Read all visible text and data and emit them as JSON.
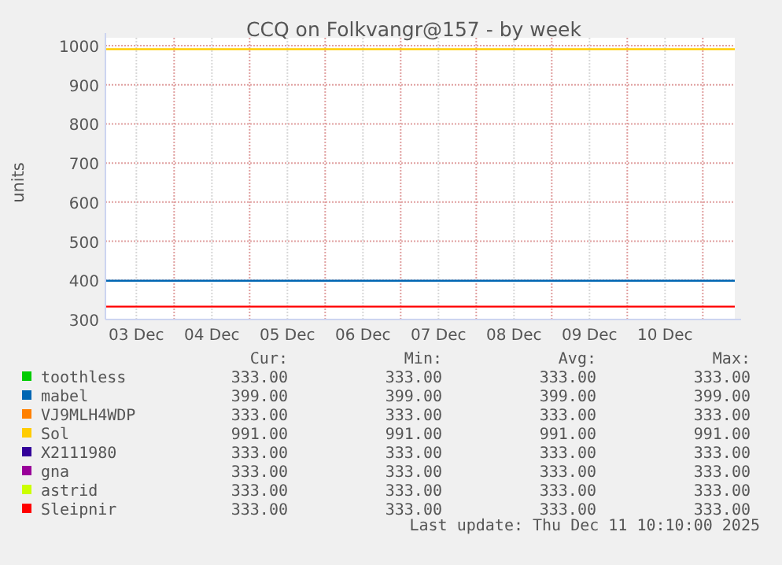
{
  "chart_data": {
    "type": "line",
    "title": "CCQ on Folkvangr@157 - by week",
    "ylabel": "units",
    "xlim": [
      "2025-12-03T02:10",
      "2025-12-11T10:10"
    ],
    "xticks": [
      {
        "value": "2025-12-03T12:00",
        "label": "03 Dec"
      },
      {
        "value": "2025-12-04T00:00",
        "label": null
      },
      {
        "value": "2025-12-04T12:00",
        "label": "04 Dec"
      },
      {
        "value": "2025-12-05T00:00",
        "label": null
      },
      {
        "value": "2025-12-05T12:00",
        "label": "05 Dec"
      },
      {
        "value": "2025-12-06T00:00",
        "label": null
      },
      {
        "value": "2025-12-06T12:00",
        "label": "06 Dec"
      },
      {
        "value": "2025-12-07T00:00",
        "label": null
      },
      {
        "value": "2025-12-07T12:00",
        "label": "07 Dec"
      },
      {
        "value": "2025-12-08T00:00",
        "label": null
      },
      {
        "value": "2025-12-08T12:00",
        "label": "08 Dec"
      },
      {
        "value": "2025-12-09T00:00",
        "label": null
      },
      {
        "value": "2025-12-09T12:00",
        "label": "09 Dec"
      },
      {
        "value": "2025-12-10T00:00",
        "label": null
      },
      {
        "value": "2025-12-10T12:00",
        "label": "10 Dec"
      },
      {
        "value": "2025-12-11T00:00",
        "label": null
      }
    ],
    "ylim": [
      300,
      1000
    ],
    "yticks": [
      300,
      400,
      500,
      600,
      700,
      800,
      900,
      1000
    ],
    "grid": true,
    "legend": "bottom",
    "line_style": "solid",
    "x": [
      "2025-12-03T02:10",
      "2025-12-11T10:10"
    ],
    "series": [
      {
        "name": "toothless",
        "color": "#00cc00",
        "values": [
          null,
          null
        ]
      },
      {
        "name": "mabel",
        "color": "#0066b3",
        "values": [
          399,
          399
        ]
      },
      {
        "name": "VJ9MLH4WDP",
        "color": "#ff8000",
        "values": [
          null,
          null
        ]
      },
      {
        "name": "Sol",
        "color": "#ffcc00",
        "values": [
          991,
          991
        ]
      },
      {
        "name": "X2111980",
        "color": "#330099",
        "values": [
          null,
          null
        ]
      },
      {
        "name": "gna",
        "color": "#990099",
        "values": [
          null,
          null
        ]
      },
      {
        "name": "astrid",
        "color": "#ccff00",
        "values": [
          null,
          null
        ]
      },
      {
        "name": "Sleipnir",
        "color": "#ff0000",
        "values": [
          333,
          333
        ]
      }
    ],
    "annotations": [
      "Cur:",
      "Min:",
      "Avg:",
      "Max:",
      "333.00",
      "333.00",
      "333.00",
      "333.00",
      "399.00",
      "399.00",
      "399.00",
      "399.00",
      "333.00",
      "333.00",
      "333.00",
      "333.00",
      "991.00",
      "991.00",
      "991.00",
      "991.00",
      "333.00",
      "333.00",
      "333.00",
      "333.00",
      "333.00",
      "333.00",
      "333.00",
      "333.00",
      "333.00",
      "333.00",
      "333.00",
      "333.00",
      "333.00",
      "333.00",
      "333.00",
      "333.00",
      "Last update: Thu Dec 11 10:10:00 2025"
    ]
  }
}
